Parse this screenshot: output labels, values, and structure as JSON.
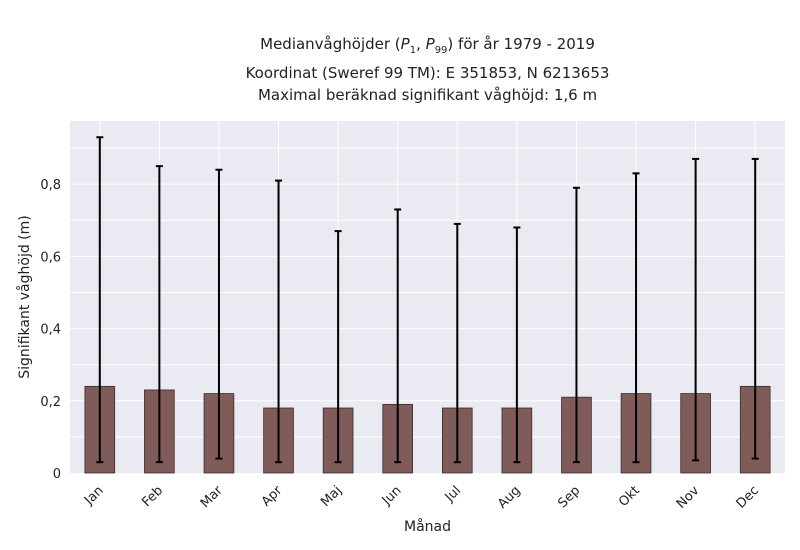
{
  "chart_data": {
    "type": "bar",
    "title_lines": [
      "Medianvåghöjder (P1, P99) för år 1979 - 2019",
      "Koordinat (Sweref 99 TM): E 351853, N 6213653",
      "Maximal beräknad signifikant våghöjd: 1,6 m"
    ],
    "xlabel": "Månad",
    "ylabel": "Signifikant våghöjd (m)",
    "categories": [
      "Jan",
      "Feb",
      "Mar",
      "Apr",
      "Maj",
      "Jun",
      "Jul",
      "Aug",
      "Sep",
      "Okt",
      "Nov",
      "Dec"
    ],
    "values": [
      0.24,
      0.23,
      0.22,
      0.18,
      0.18,
      0.19,
      0.18,
      0.18,
      0.21,
      0.22,
      0.22,
      0.24
    ],
    "p1": [
      0.03,
      0.03,
      0.04,
      0.03,
      0.03,
      0.03,
      0.03,
      0.03,
      0.03,
      0.03,
      0.035,
      0.04
    ],
    "p99": [
      0.93,
      0.85,
      0.84,
      0.81,
      0.67,
      0.73,
      0.69,
      0.68,
      0.79,
      0.83,
      0.87,
      0.87
    ],
    "ylim": [
      0,
      0.975
    ],
    "yticks": [
      0,
      0.2,
      0.4,
      0.6,
      0.8
    ],
    "ytick_labels": [
      "0",
      "0,2",
      "0,4",
      "0,6",
      "0,8"
    ],
    "grid": true,
    "colors": {
      "bar": "#7f5b5a",
      "bar_edge": "#3a2a2a",
      "background": "#eaeaf2",
      "grid": "#ffffff",
      "error": "#000000"
    }
  }
}
